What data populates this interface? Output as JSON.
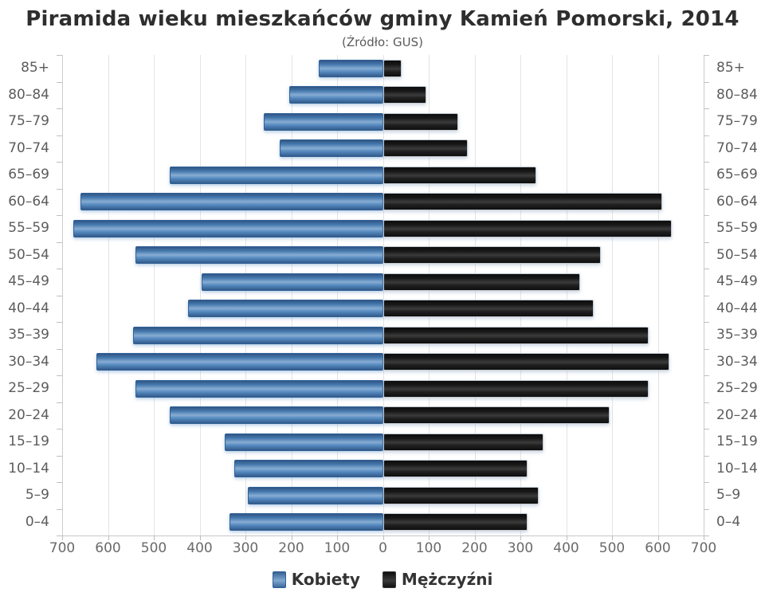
{
  "title": "Piramida wieku mieszkańców gminy Kamień Pomorski, 2014",
  "subtitle": "(Źródło: GUS)",
  "colors": {
    "female_bar": "#4a82bc",
    "male_bar": "#1b1b1b",
    "grid": "#e4e4e4",
    "axis": "#c6c6c6",
    "label_text": "#5c5c5c",
    "title_text": "#2e2e2e"
  },
  "chart_data": {
    "type": "bar",
    "variant": "population-pyramid",
    "title": "Piramida wieku mieszkańców gminy Kamień Pomorski, 2014",
    "subtitle": "(Źródło: GUS)",
    "categories": [
      "85+",
      "80–84",
      "75–79",
      "70–74",
      "65–69",
      "60–64",
      "55–59",
      "50–54",
      "45–49",
      "40–44",
      "35–39",
      "30–34",
      "25–29",
      "20–24",
      "15–19",
      "10–14",
      "5–9",
      "0–4"
    ],
    "series": [
      {
        "name": "Kobiety",
        "side": "left",
        "color": "#4a82bc",
        "values": [
          140,
          205,
          260,
          225,
          465,
          660,
          675,
          540,
          395,
          425,
          545,
          625,
          540,
          465,
          345,
          325,
          295,
          335
        ]
      },
      {
        "name": "Mężczyźni",
        "side": "right",
        "color": "#1b1b1b",
        "values": [
          40,
          95,
          165,
          185,
          335,
          610,
          630,
          475,
          430,
          460,
          580,
          625,
          580,
          495,
          350,
          315,
          340,
          315
        ]
      }
    ],
    "xlim": [
      0,
      700
    ],
    "xticks": [
      700,
      600,
      500,
      400,
      300,
      200,
      100,
      0,
      100,
      200,
      300,
      400,
      500,
      600,
      700
    ],
    "grid": true,
    "legend_position": "bottom"
  }
}
